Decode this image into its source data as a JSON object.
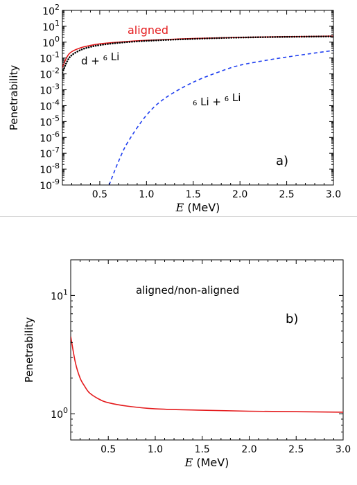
{
  "chart_data": [
    {
      "type": "line",
      "panel_label": "a)",
      "xlabel": "E (MeV)",
      "ylabel": "Penetrability",
      "xlim": [
        0.1,
        3.0
      ],
      "ylim": [
        1e-09,
        100
      ],
      "yscale": "log",
      "x_ticks": [
        0.5,
        1.0,
        1.5,
        2.0,
        2.5,
        3.0
      ],
      "x_tick_labels": [
        "0.5",
        "1.0",
        "1.5",
        "2.0",
        "2.5",
        "3.0"
      ],
      "y_tick_labels": [
        {
          "base": "10",
          "exp": "2",
          "value": 100
        },
        {
          "base": "10",
          "exp": "1",
          "value": 10
        },
        {
          "base": "10",
          "exp": "0",
          "value": 1
        },
        {
          "base": "10",
          "exp": "-1",
          "value": 0.1
        },
        {
          "base": "10",
          "exp": "-2",
          "value": 0.01
        },
        {
          "base": "10",
          "exp": "-3",
          "value": 0.001
        },
        {
          "base": "10",
          "exp": "-4",
          "value": 0.0001
        },
        {
          "base": "10",
          "exp": "-5",
          "value": 1e-05
        },
        {
          "base": "10",
          "exp": "-6",
          "value": 1e-06
        },
        {
          "base": "10",
          "exp": "-7",
          "value": 1e-07
        },
        {
          "base": "10",
          "exp": "-8",
          "value": 1e-08
        },
        {
          "base": "10",
          "exp": "-9",
          "value": 1e-09
        }
      ],
      "grid": false,
      "annotations": [
        {
          "id": "aligned",
          "text": "aligned",
          "color": "#e41a1c"
        },
        {
          "id": "d-li6",
          "text": "d + ⁶ Li",
          "color": "#000000"
        },
        {
          "id": "li6-li6",
          "text": "⁶ Li + ⁶ Li",
          "color": "#000000"
        }
      ],
      "series": [
        {
          "id": "aligned",
          "color": "#e41a1c",
          "style": "solid",
          "x": [
            0.1,
            0.15,
            0.2,
            0.3,
            0.4,
            0.5,
            0.7,
            1.0,
            1.5,
            2.0,
            2.5,
            3.0
          ],
          "y": [
            0.025,
            0.12,
            0.25,
            0.45,
            0.62,
            0.78,
            1.0,
            1.3,
            1.7,
            2.0,
            2.2,
            2.4
          ]
        },
        {
          "id": "d-li6",
          "color": "#000000",
          "style": "dotted",
          "x": [
            0.1,
            0.15,
            0.2,
            0.3,
            0.4,
            0.5,
            0.7,
            1.0,
            1.5,
            2.0,
            2.5,
            3.0
          ],
          "y": [
            0.012,
            0.06,
            0.15,
            0.33,
            0.5,
            0.65,
            0.9,
            1.2,
            1.6,
            1.95,
            2.15,
            2.3
          ]
        },
        {
          "id": "li6-li6",
          "color": "#1f3ff0",
          "style": "dashed",
          "x": [
            0.6,
            0.7,
            0.8,
            1.0,
            1.2,
            1.5,
            1.8,
            2.0,
            2.3,
            2.6,
            3.0
          ],
          "y": [
            1e-09,
            3e-08,
            5e-07,
            2.5e-05,
            0.0003,
            0.003,
            0.015,
            0.035,
            0.075,
            0.14,
            0.3
          ]
        }
      ]
    },
    {
      "type": "line",
      "panel_label": "b)",
      "xlabel": "E (MeV)",
      "ylabel": "Penetrability",
      "xlim": [
        0.1,
        3.0
      ],
      "ylim": [
        0.6,
        20
      ],
      "yscale": "log",
      "x_ticks": [
        0.5,
        1.0,
        1.5,
        2.0,
        2.5,
        3.0
      ],
      "x_tick_labels": [
        "0.5",
        "1.0",
        "1.5",
        "2.0",
        "2.5",
        "3.0"
      ],
      "y_tick_labels": [
        {
          "base": "10",
          "exp": "1",
          "value": 10
        },
        {
          "base": "10",
          "exp": "0",
          "value": 1
        }
      ],
      "grid": false,
      "annotations": [
        {
          "id": "ratio",
          "text": "aligned/non-aligned",
          "color": "#000000"
        }
      ],
      "series": [
        {
          "id": "ratio",
          "color": "#e41a1c",
          "style": "solid",
          "x": [
            0.1,
            0.15,
            0.2,
            0.25,
            0.3,
            0.4,
            0.5,
            0.7,
            1.0,
            1.5,
            2.0,
            2.5,
            3.0
          ],
          "y": [
            4.5,
            2.7,
            2.0,
            1.7,
            1.5,
            1.33,
            1.24,
            1.16,
            1.1,
            1.07,
            1.05,
            1.04,
            1.03
          ]
        }
      ]
    }
  ]
}
